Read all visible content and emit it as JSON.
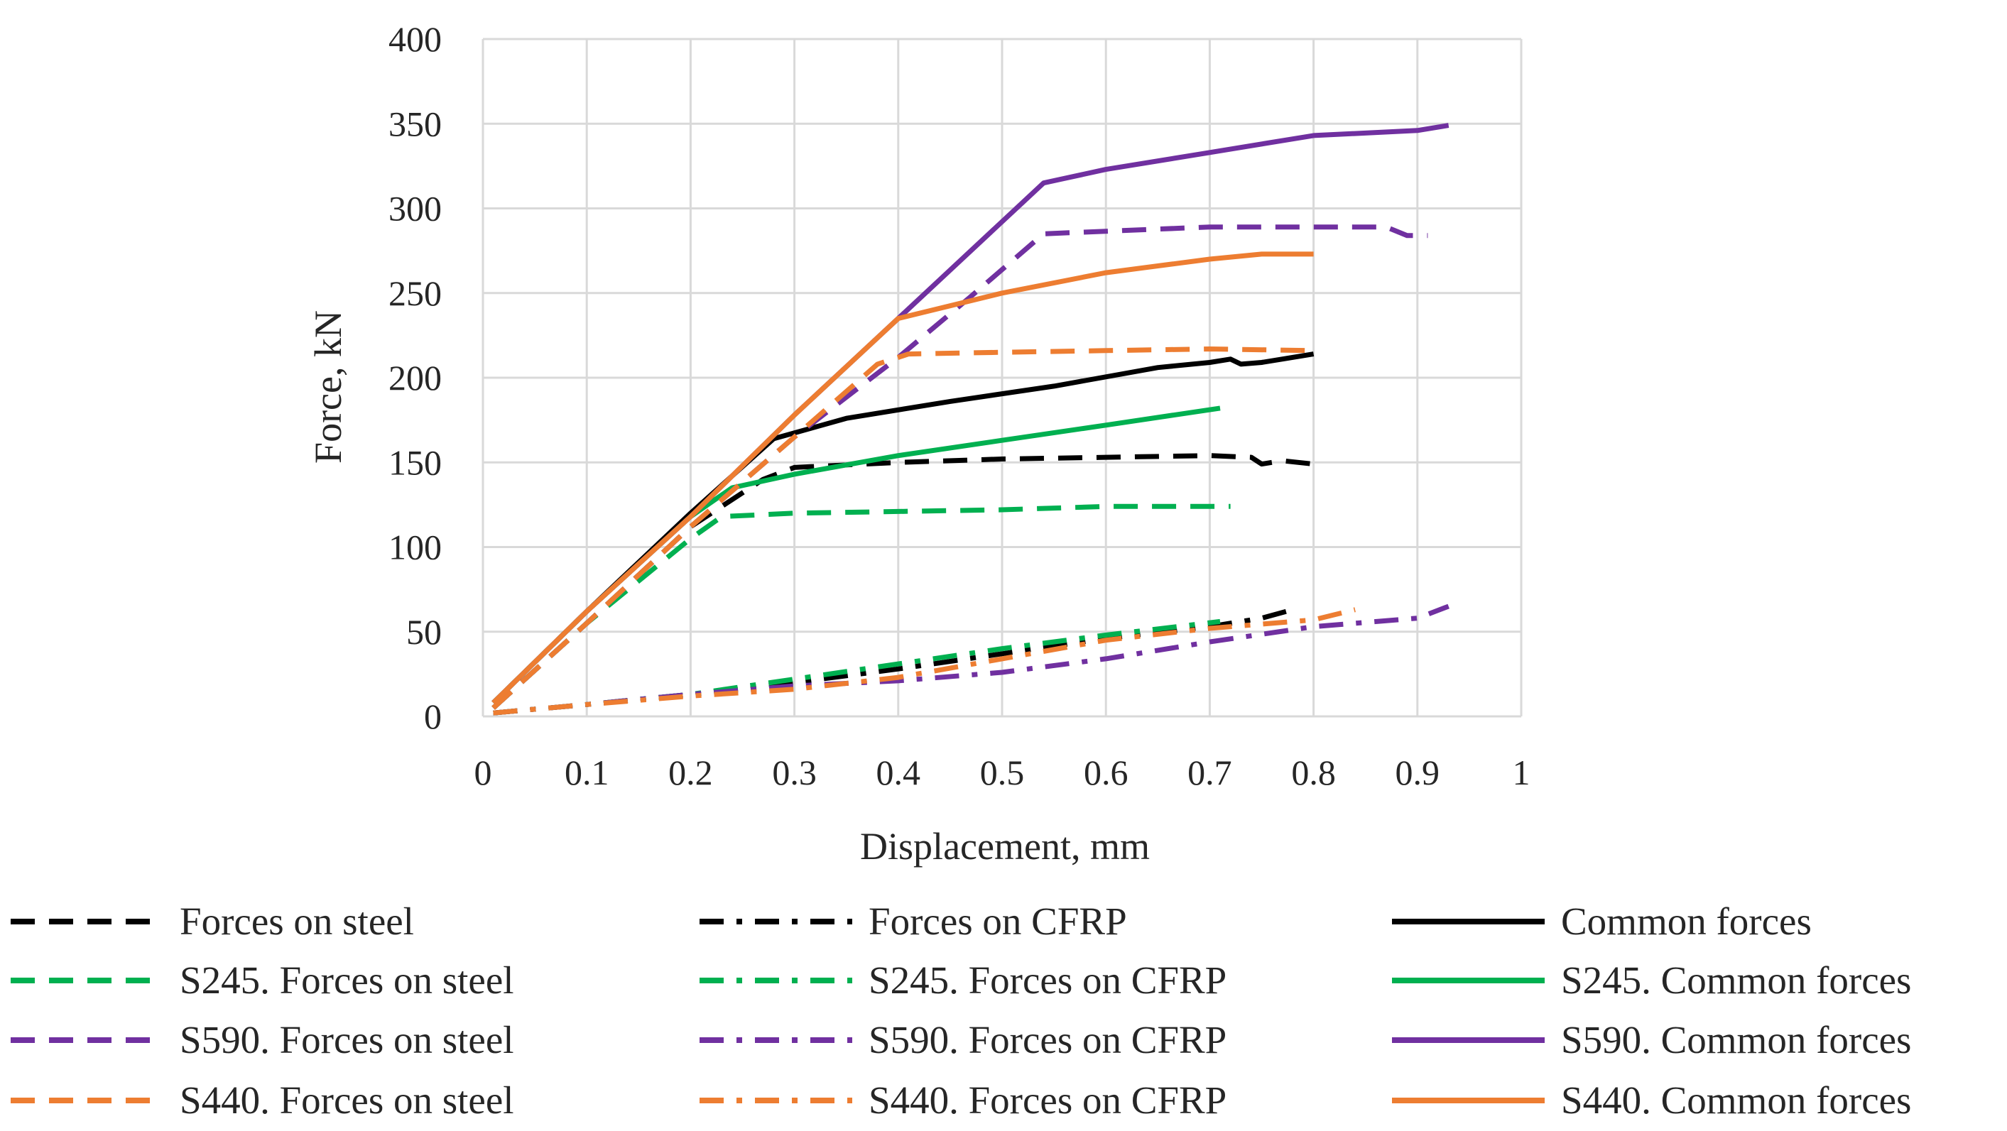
{
  "chart_data": {
    "type": "line",
    "title": "",
    "xlabel": "Displacement, mm",
    "ylabel": "Force, kN",
    "xlim": [
      0,
      1
    ],
    "ylim": [
      0,
      400
    ],
    "xticks": [
      "0",
      "0.1",
      "0.2",
      "0.3",
      "0.4",
      "0.5",
      "0.6",
      "0.7",
      "0.8",
      "0.9",
      "1"
    ],
    "yticks": [
      "0",
      "50",
      "100",
      "150",
      "200",
      "250",
      "300",
      "350",
      "400"
    ],
    "grid": true,
    "legend_position": "bottom",
    "colors": {
      "black": "#000000",
      "green": "#00b050",
      "purple": "#7030a0",
      "orange": "#ed7d31"
    },
    "series": [
      {
        "name": "Forces on steel",
        "color": "black",
        "style": "dashed",
        "x": [
          0.01,
          0.1,
          0.2,
          0.27,
          0.3,
          0.4,
          0.5,
          0.6,
          0.7,
          0.74,
          0.75,
          0.77,
          0.8
        ],
        "y": [
          5,
          55,
          112,
          140,
          147,
          150,
          152,
          153,
          154,
          153,
          149,
          151,
          149
        ]
      },
      {
        "name": "Forces on CFRP",
        "color": "black",
        "style": "dashdot",
        "x": [
          0.01,
          0.1,
          0.2,
          0.3,
          0.4,
          0.5,
          0.6,
          0.7,
          0.75,
          0.78
        ],
        "y": [
          2,
          7,
          13,
          20,
          28,
          37,
          46,
          53,
          58,
          63
        ]
      },
      {
        "name": "Common forces",
        "color": "black",
        "style": "solid",
        "x": [
          0.01,
          0.1,
          0.2,
          0.28,
          0.35,
          0.45,
          0.55,
          0.65,
          0.7,
          0.72,
          0.73,
          0.75,
          0.8
        ],
        "y": [
          8,
          62,
          120,
          164,
          176,
          186,
          195,
          206,
          209,
          211,
          208,
          209,
          214
        ]
      },
      {
        "name": "S245.  Forces on steel",
        "color": "green",
        "style": "dashed",
        "x": [
          0.01,
          0.1,
          0.2,
          0.23,
          0.3,
          0.5,
          0.6,
          0.72
        ],
        "y": [
          5,
          55,
          105,
          118,
          120,
          122,
          124,
          124
        ]
      },
      {
        "name": "S245.  Forces on CFRP",
        "color": "green",
        "style": "dashdot",
        "x": [
          0.01,
          0.1,
          0.2,
          0.3,
          0.4,
          0.5,
          0.6,
          0.71
        ],
        "y": [
          2,
          7,
          13,
          22,
          31,
          40,
          48,
          56
        ]
      },
      {
        "name": "S245.  Common forces",
        "color": "green",
        "style": "solid",
        "x": [
          0.01,
          0.1,
          0.2,
          0.24,
          0.3,
          0.4,
          0.5,
          0.6,
          0.71
        ],
        "y": [
          8,
          62,
          118,
          135,
          143,
          154,
          163,
          172,
          182
        ]
      },
      {
        "name": "S590.  Forces on steel",
        "color": "purple",
        "style": "dashed",
        "x": [
          0.01,
          0.1,
          0.2,
          0.3,
          0.4,
          0.47,
          0.54,
          0.7,
          0.8,
          0.87,
          0.89,
          0.91
        ],
        "y": [
          5,
          55,
          112,
          165,
          212,
          248,
          285,
          289,
          289,
          289,
          284,
          284
        ]
      },
      {
        "name": "S590.  Forces on CFRP",
        "color": "purple",
        "style": "dashdot",
        "x": [
          0.01,
          0.1,
          0.2,
          0.3,
          0.4,
          0.5,
          0.6,
          0.7,
          0.8,
          0.9,
          0.93
        ],
        "y": [
          2,
          7,
          13,
          18,
          21,
          26,
          34,
          44,
          53,
          58,
          65
        ]
      },
      {
        "name": "S590.  Common forces",
        "color": "purple",
        "style": "solid",
        "x": [
          0.01,
          0.1,
          0.2,
          0.3,
          0.4,
          0.54,
          0.6,
          0.7,
          0.8,
          0.9,
          0.93
        ],
        "y": [
          8,
          62,
          118,
          178,
          235,
          315,
          323,
          333,
          343,
          346,
          349
        ]
      },
      {
        "name": "S440.  Forces on steel",
        "color": "orange",
        "style": "dashed",
        "x": [
          0.01,
          0.1,
          0.2,
          0.3,
          0.38,
          0.41,
          0.5,
          0.6,
          0.7,
          0.8
        ],
        "y": [
          5,
          55,
          112,
          165,
          208,
          214,
          215,
          216,
          217,
          216
        ]
      },
      {
        "name": "S440.  Forces on CFRP",
        "color": "orange",
        "style": "dashdot",
        "x": [
          0.01,
          0.1,
          0.2,
          0.3,
          0.4,
          0.5,
          0.6,
          0.7,
          0.8,
          0.82,
          0.84
        ],
        "y": [
          2,
          7,
          12,
          16,
          23,
          34,
          45,
          52,
          57,
          60,
          63
        ]
      },
      {
        "name": "S440.  Common forces",
        "color": "orange",
        "style": "solid",
        "x": [
          0.01,
          0.1,
          0.2,
          0.3,
          0.4,
          0.5,
          0.6,
          0.7,
          0.75,
          0.8
        ],
        "y": [
          8,
          62,
          118,
          178,
          235,
          250,
          262,
          270,
          273,
          273
        ]
      }
    ]
  }
}
